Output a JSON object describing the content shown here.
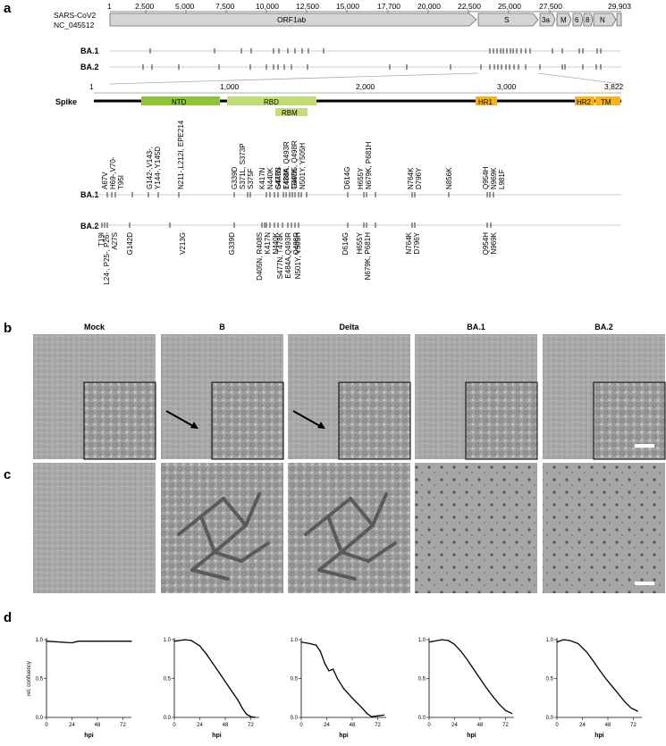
{
  "panels": {
    "a": "a",
    "b": "b",
    "c": "c",
    "d": "d"
  },
  "genome": {
    "label_line1": "SARS-CoV2",
    "label_line2": "NC_045512",
    "start": "1",
    "end": "29,903",
    "ticks": [
      "2,500",
      "5,000",
      "7,500",
      "10,000",
      "12,500",
      "15,000",
      "17,700",
      "20,000",
      "22,500",
      "25,000",
      "27,500"
    ],
    "genes": [
      "ORF1ab",
      "S",
      "3a",
      "M",
      "6",
      "8",
      "N"
    ],
    "tracks": [
      "BA.1",
      "BA.2"
    ]
  },
  "spike": {
    "label": "Spike",
    "start": "1",
    "ticks": [
      "1,000",
      "2,000",
      "3,000",
      "3,822"
    ],
    "domains": [
      "NTD",
      "RBD",
      "RBM",
      "HR1",
      "HR2",
      "TM"
    ],
    "tracks": [
      "BA.1",
      "BA.2"
    ],
    "mutations_ba1": [
      "A67V\nH69-,V70-\nT95I",
      "G142-,V143-,\nY144-,Y145D",
      "N211-,L212I, EPE214",
      "G339D\nS371L, S373P\nS375F",
      "K417N\nN440K\nS477N\nE484A, Q493R\nG496S, Q498R\nN501Y, Y505H",
      "G446S\nT478K\nT547K",
      "D614G",
      "H655Y\nN679K, P681H",
      "N764K\nD796Y",
      "N856K",
      "Q954H\nN969K\nL981F"
    ],
    "mutations_ba2": [
      "T19I",
      "L24-, P25-, P26-\nA27S",
      "G142D",
      "V213G",
      "G339D",
      "D405N, R408S\nK417N\nN440K",
      "S477N, T478K\nE484A,Q493R\nQ498R",
      "N501Y, Y505H",
      "D614G",
      "H655Y\nN679K, P681H",
      "N764K\nD796Y",
      "Q954H\nN969K"
    ]
  },
  "conditions": [
    "Mock",
    "B",
    "Delta",
    "BA.1",
    "BA.2"
  ],
  "chart_data": [
    {
      "type": "line",
      "title": "Mock",
      "xlabel": "hpi",
      "ylabel": "rel. confluency",
      "xlim": [
        0,
        80
      ],
      "ylim": [
        0,
        1.0
      ],
      "x_ticks": [
        0,
        24,
        48,
        72
      ],
      "y_ticks": [
        0.0,
        0.5,
        1.0
      ],
      "x": [
        0,
        24,
        30,
        48,
        72,
        80
      ],
      "y": [
        0.98,
        0.96,
        0.98,
        0.98,
        0.98,
        0.98
      ]
    },
    {
      "type": "line",
      "title": "B",
      "xlabel": "hpi",
      "ylabel": "",
      "xlim": [
        0,
        80
      ],
      "ylim": [
        0,
        1.0
      ],
      "x_ticks": [
        0,
        24,
        48,
        72
      ],
      "y_ticks": [
        0.0,
        0.5,
        1.0
      ],
      "x": [
        0,
        10,
        16,
        24,
        30,
        36,
        42,
        48,
        54,
        60,
        64,
        68,
        72,
        76
      ],
      "y": [
        0.98,
        1.0,
        0.99,
        0.92,
        0.82,
        0.7,
        0.58,
        0.46,
        0.34,
        0.22,
        0.12,
        0.04,
        0.01,
        0.0
      ]
    },
    {
      "type": "line",
      "title": "Delta",
      "xlabel": "hpi",
      "ylabel": "",
      "xlim": [
        0,
        80
      ],
      "ylim": [
        0,
        1.0
      ],
      "x_ticks": [
        0,
        24,
        48,
        72
      ],
      "y_ticks": [
        0.0,
        0.5,
        1.0
      ],
      "x": [
        0,
        8,
        14,
        18,
        22,
        26,
        30,
        34,
        40,
        48,
        56,
        62,
        66,
        72,
        78
      ],
      "y": [
        0.97,
        0.95,
        0.93,
        0.85,
        0.7,
        0.6,
        0.62,
        0.5,
        0.37,
        0.25,
        0.14,
        0.05,
        0.01,
        0.02,
        0.03
      ]
    },
    {
      "type": "line",
      "title": "BA.1",
      "xlabel": "hpi",
      "ylabel": "",
      "xlim": [
        0,
        80
      ],
      "ylim": [
        0,
        1.0
      ],
      "x_ticks": [
        0,
        24,
        48,
        72
      ],
      "y_ticks": [
        0.0,
        0.5,
        1.0
      ],
      "x": [
        0,
        12,
        18,
        24,
        30,
        36,
        42,
        48,
        54,
        60,
        66,
        72,
        78
      ],
      "y": [
        0.97,
        1.0,
        0.99,
        0.94,
        0.85,
        0.74,
        0.62,
        0.5,
        0.38,
        0.27,
        0.17,
        0.09,
        0.05
      ]
    },
    {
      "type": "line",
      "title": "BA.2",
      "xlabel": "hpi",
      "ylabel": "",
      "xlim": [
        0,
        80
      ],
      "ylim": [
        0,
        1.0
      ],
      "x_ticks": [
        0,
        24,
        48,
        72
      ],
      "y_ticks": [
        0.0,
        0.5,
        1.0
      ],
      "x": [
        0,
        6,
        12,
        20,
        28,
        34,
        40,
        46,
        52,
        58,
        64,
        70,
        76
      ],
      "y": [
        0.97,
        1.0,
        0.99,
        0.95,
        0.84,
        0.73,
        0.61,
        0.5,
        0.4,
        0.3,
        0.2,
        0.12,
        0.08
      ]
    }
  ]
}
